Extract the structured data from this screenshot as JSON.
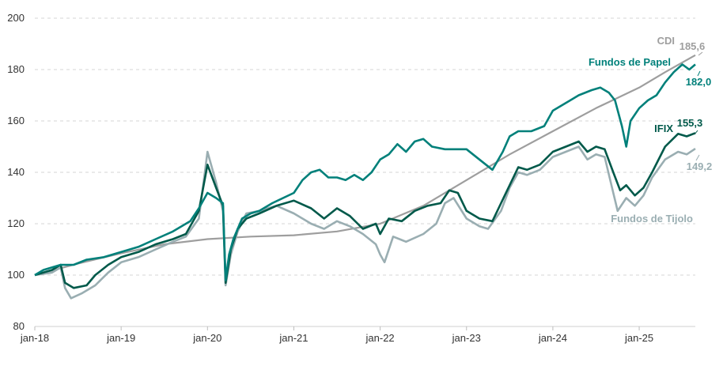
{
  "chart_data": {
    "type": "line",
    "title": "",
    "xlabel": "",
    "ylabel": "",
    "ylim": [
      80,
      200
    ],
    "yticks": [
      80,
      100,
      120,
      140,
      160,
      180,
      200
    ],
    "xlim": [
      2018.0,
      2025.65
    ],
    "xticks": [
      {
        "label": "jan-18",
        "x": 2018
      },
      {
        "label": "jan-19",
        "x": 2019
      },
      {
        "label": "jan-20",
        "x": 2020
      },
      {
        "label": "jan-21",
        "x": 2021
      },
      {
        "label": "jan-22",
        "x": 2022
      },
      {
        "label": "jan-23",
        "x": 2023
      },
      {
        "label": "jan-24",
        "x": 2024
      },
      {
        "label": "jan-25",
        "x": 2025
      }
    ],
    "grid": "horizontal dashed",
    "legend": "none (direct labels at line ends)",
    "series": [
      {
        "name": "CDI",
        "color": "#9e9e9e",
        "end_label": "185,6",
        "points": [
          [
            2018,
            100
          ],
          [
            2018.5,
            104.5
          ],
          [
            2019,
            108.5
          ],
          [
            2019.5,
            112
          ],
          [
            2020,
            114
          ],
          [
            2020.5,
            115
          ],
          [
            2021,
            115.5
          ],
          [
            2021.5,
            117
          ],
          [
            2022,
            120
          ],
          [
            2022.5,
            127
          ],
          [
            2023,
            137
          ],
          [
            2023.5,
            147
          ],
          [
            2024,
            156
          ],
          [
            2024.5,
            165
          ],
          [
            2025,
            173
          ],
          [
            2025.3,
            179
          ],
          [
            2025.65,
            185.6
          ]
        ]
      },
      {
        "name": "Fundos de Papel",
        "color": "#00807a",
        "end_label": "182,0",
        "points": [
          [
            2018,
            100
          ],
          [
            2018.1,
            102
          ],
          [
            2018.3,
            104
          ],
          [
            2018.45,
            104
          ],
          [
            2018.6,
            106
          ],
          [
            2018.8,
            107
          ],
          [
            2019,
            109
          ],
          [
            2019.2,
            111
          ],
          [
            2019.4,
            114
          ],
          [
            2019.6,
            117
          ],
          [
            2019.8,
            121
          ],
          [
            2019.9,
            126
          ],
          [
            2020,
            132
          ],
          [
            2020.1,
            130
          ],
          [
            2020.18,
            128
          ],
          [
            2020.21,
            98
          ],
          [
            2020.25,
            108
          ],
          [
            2020.3,
            114
          ],
          [
            2020.4,
            122
          ],
          [
            2020.5,
            124
          ],
          [
            2020.6,
            125
          ],
          [
            2020.75,
            128
          ],
          [
            2021,
            132
          ],
          [
            2021.1,
            137
          ],
          [
            2021.2,
            140
          ],
          [
            2021.3,
            141
          ],
          [
            2021.4,
            138
          ],
          [
            2021.5,
            138
          ],
          [
            2021.6,
            137
          ],
          [
            2021.7,
            139
          ],
          [
            2021.8,
            137
          ],
          [
            2021.9,
            140
          ],
          [
            2022,
            145
          ],
          [
            2022.1,
            147
          ],
          [
            2022.2,
            151
          ],
          [
            2022.3,
            148
          ],
          [
            2022.4,
            152
          ],
          [
            2022.5,
            153
          ],
          [
            2022.6,
            150
          ],
          [
            2022.75,
            149
          ],
          [
            2022.9,
            149
          ],
          [
            2023,
            149
          ],
          [
            2023.15,
            145
          ],
          [
            2023.3,
            141
          ],
          [
            2023.42,
            148
          ],
          [
            2023.5,
            154
          ],
          [
            2023.6,
            156
          ],
          [
            2023.75,
            156
          ],
          [
            2023.9,
            158
          ],
          [
            2024,
            164
          ],
          [
            2024.15,
            167
          ],
          [
            2024.3,
            170
          ],
          [
            2024.45,
            172
          ],
          [
            2024.55,
            173
          ],
          [
            2024.65,
            171
          ],
          [
            2024.72,
            168
          ],
          [
            2024.8,
            158
          ],
          [
            2024.85,
            150
          ],
          [
            2024.9,
            160
          ],
          [
            2025,
            165
          ],
          [
            2025.1,
            168
          ],
          [
            2025.2,
            170
          ],
          [
            2025.3,
            175
          ],
          [
            2025.4,
            179
          ],
          [
            2025.5,
            182
          ],
          [
            2025.58,
            180
          ],
          [
            2025.65,
            182
          ]
        ]
      },
      {
        "name": "IFIX",
        "color": "#00594a",
        "end_label": "155,3",
        "points": [
          [
            2018,
            100
          ],
          [
            2018.2,
            102
          ],
          [
            2018.3,
            104
          ],
          [
            2018.35,
            97
          ],
          [
            2018.45,
            95
          ],
          [
            2018.6,
            96
          ],
          [
            2018.7,
            100
          ],
          [
            2018.85,
            104
          ],
          [
            2019,
            107
          ],
          [
            2019.2,
            109
          ],
          [
            2019.4,
            112
          ],
          [
            2019.6,
            114
          ],
          [
            2019.75,
            116
          ],
          [
            2019.9,
            125
          ],
          [
            2020,
            143
          ],
          [
            2020.1,
            134
          ],
          [
            2020.18,
            127
          ],
          [
            2020.21,
            97
          ],
          [
            2020.27,
            110
          ],
          [
            2020.35,
            118
          ],
          [
            2020.45,
            122
          ],
          [
            2020.6,
            124
          ],
          [
            2020.8,
            127
          ],
          [
            2021,
            129
          ],
          [
            2021.2,
            126
          ],
          [
            2021.35,
            122
          ],
          [
            2021.5,
            126
          ],
          [
            2021.65,
            123
          ],
          [
            2021.8,
            118
          ],
          [
            2021.95,
            120
          ],
          [
            2022,
            116
          ],
          [
            2022.1,
            122
          ],
          [
            2022.25,
            121
          ],
          [
            2022.4,
            125
          ],
          [
            2022.55,
            127
          ],
          [
            2022.7,
            128
          ],
          [
            2022.8,
            133
          ],
          [
            2022.9,
            132
          ],
          [
            2023,
            125
          ],
          [
            2023.15,
            122
          ],
          [
            2023.3,
            121
          ],
          [
            2023.4,
            128
          ],
          [
            2023.5,
            135
          ],
          [
            2023.6,
            142
          ],
          [
            2023.7,
            141
          ],
          [
            2023.85,
            143
          ],
          [
            2024,
            148
          ],
          [
            2024.15,
            150
          ],
          [
            2024.3,
            152
          ],
          [
            2024.4,
            148
          ],
          [
            2024.5,
            150
          ],
          [
            2024.6,
            149
          ],
          [
            2024.7,
            140
          ],
          [
            2024.78,
            133
          ],
          [
            2024.85,
            135
          ],
          [
            2024.95,
            131
          ],
          [
            2025.05,
            134
          ],
          [
            2025.15,
            140
          ],
          [
            2025.3,
            150
          ],
          [
            2025.45,
            155
          ],
          [
            2025.55,
            154
          ],
          [
            2025.65,
            155.3
          ]
        ]
      },
      {
        "name": "Fundos de Tijolo",
        "color": "#9aaeb2",
        "end_label": "149,2",
        "points": [
          [
            2018,
            100
          ],
          [
            2018.2,
            101
          ],
          [
            2018.3,
            103
          ],
          [
            2018.35,
            95
          ],
          [
            2018.42,
            91
          ],
          [
            2018.55,
            93
          ],
          [
            2018.7,
            96
          ],
          [
            2018.85,
            101
          ],
          [
            2019,
            105
          ],
          [
            2019.2,
            107
          ],
          [
            2019.4,
            110
          ],
          [
            2019.6,
            113
          ],
          [
            2019.75,
            115
          ],
          [
            2019.9,
            122
          ],
          [
            2020,
            148
          ],
          [
            2020.1,
            136
          ],
          [
            2020.18,
            125
          ],
          [
            2020.21,
            96
          ],
          [
            2020.27,
            108
          ],
          [
            2020.35,
            117
          ],
          [
            2020.45,
            124
          ],
          [
            2020.6,
            125
          ],
          [
            2020.8,
            127
          ],
          [
            2021,
            124
          ],
          [
            2021.2,
            120
          ],
          [
            2021.35,
            118
          ],
          [
            2021.5,
            121
          ],
          [
            2021.65,
            119
          ],
          [
            2021.8,
            116
          ],
          [
            2021.95,
            112
          ],
          [
            2022,
            108
          ],
          [
            2022.05,
            105
          ],
          [
            2022.15,
            115
          ],
          [
            2022.3,
            113
          ],
          [
            2022.5,
            116
          ],
          [
            2022.65,
            120
          ],
          [
            2022.75,
            128
          ],
          [
            2022.85,
            130
          ],
          [
            2023,
            122
          ],
          [
            2023.15,
            119
          ],
          [
            2023.25,
            118
          ],
          [
            2023.4,
            125
          ],
          [
            2023.5,
            134
          ],
          [
            2023.6,
            140
          ],
          [
            2023.7,
            139
          ],
          [
            2023.85,
            141
          ],
          [
            2024,
            146
          ],
          [
            2024.15,
            148
          ],
          [
            2024.3,
            150
          ],
          [
            2024.4,
            145
          ],
          [
            2024.5,
            147
          ],
          [
            2024.6,
            146
          ],
          [
            2024.7,
            132
          ],
          [
            2024.75,
            125
          ],
          [
            2024.85,
            130
          ],
          [
            2024.95,
            127
          ],
          [
            2025.05,
            131
          ],
          [
            2025.15,
            138
          ],
          [
            2025.3,
            145
          ],
          [
            2025.45,
            148
          ],
          [
            2025.55,
            147
          ],
          [
            2025.65,
            149.2
          ]
        ]
      }
    ]
  }
}
